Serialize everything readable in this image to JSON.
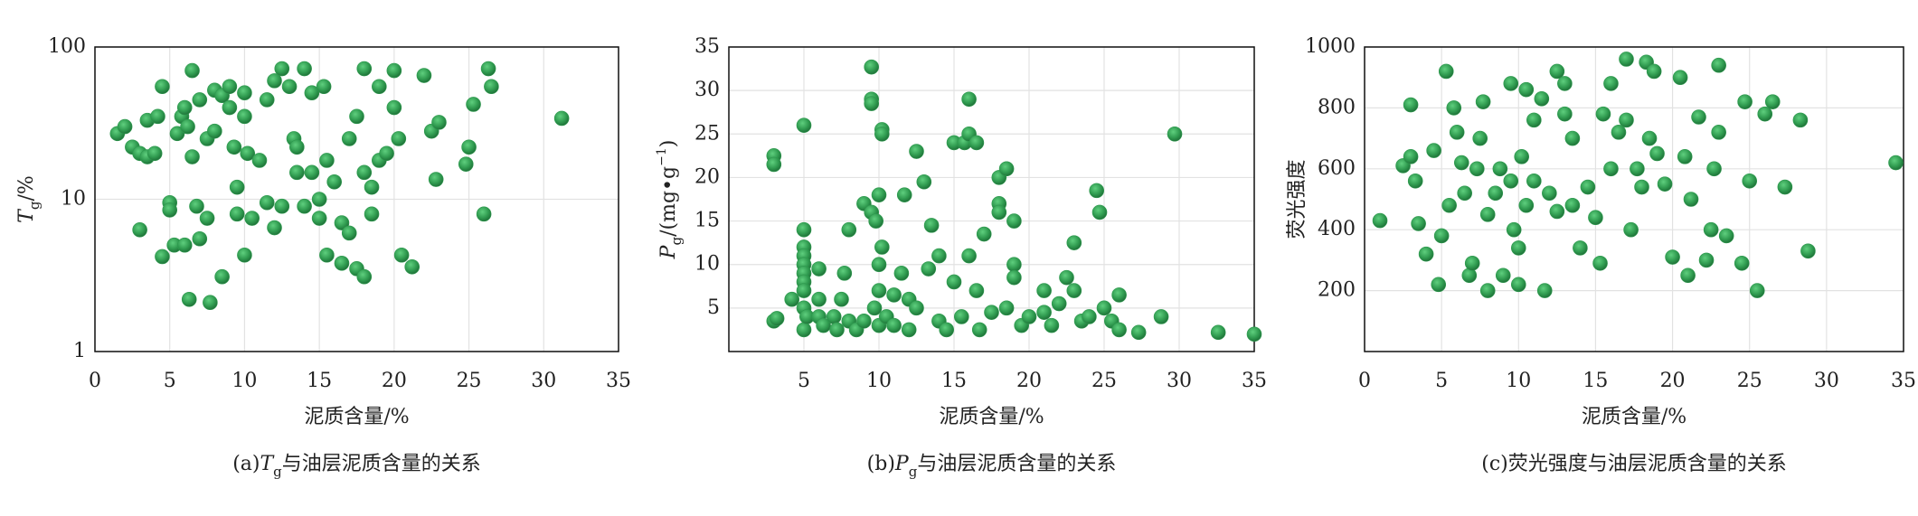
{
  "chart_data": [
    {
      "type": "scatter",
      "color": "#2f9a4f",
      "log_y": true,
      "grid": true,
      "xlabel": [
        {
          "text": "泥质含量/%"
        }
      ],
      "ylabel": [
        {
          "text": "T",
          "style": "italic"
        },
        {
          "text": "g",
          "style": "sub"
        },
        {
          "text": "/%"
        }
      ],
      "caption": [
        {
          "text": "(a)"
        },
        {
          "text": "T",
          "style": "italic"
        },
        {
          "text": "g",
          "style": "sub"
        },
        {
          "text": "与油层泥质含量的关系"
        }
      ],
      "xlim": [
        0,
        35
      ],
      "xticks": [
        0,
        5,
        10,
        15,
        20,
        25,
        30,
        35
      ],
      "ylim": [
        1,
        100
      ],
      "yticks": [
        1,
        10,
        100
      ],
      "x": [
        1.5,
        2,
        2.5,
        3,
        3,
        3.5,
        3.5,
        4,
        4.2,
        4.5,
        4.5,
        5,
        5,
        5.3,
        5.5,
        5.8,
        6,
        6,
        6.2,
        6.3,
        6.5,
        6.5,
        6.8,
        7,
        7,
        7.5,
        7.5,
        7.7,
        8,
        8,
        8.5,
        8.5,
        9,
        9,
        9.3,
        9.5,
        9.5,
        10,
        10,
        10,
        10.2,
        10.5,
        11,
        11.5,
        11.5,
        12,
        12,
        12.5,
        12.5,
        13,
        13.3,
        13.5,
        13.5,
        14,
        14,
        14.5,
        14.5,
        15,
        15,
        15.3,
        15.5,
        15.5,
        16,
        16.5,
        16.5,
        17,
        17,
        17.5,
        17.5,
        18,
        18,
        18,
        18.5,
        18.5,
        19,
        19,
        19.5,
        20,
        20,
        20.3,
        20.5,
        21.2,
        22,
        22.5,
        22.8,
        23,
        24.8,
        25,
        25.3,
        26,
        26.3,
        26.5,
        31.2
      ],
      "values": [
        27,
        30,
        22,
        20,
        6.3,
        33,
        19,
        20,
        35,
        55,
        4.2,
        9.5,
        8.5,
        5,
        27,
        35,
        5,
        40,
        30,
        2.2,
        19,
        70,
        9,
        5.5,
        45,
        25,
        7.5,
        2.1,
        28,
        52,
        48,
        3.1,
        55,
        40,
        22,
        12,
        8,
        35,
        4.3,
        50,
        20,
        7.5,
        18,
        45,
        9.5,
        60,
        6.5,
        72,
        9,
        55,
        25,
        15,
        22,
        72,
        9,
        15,
        50,
        10,
        7.5,
        55,
        18,
        4.3,
        13,
        7,
        3.8,
        25,
        6,
        35,
        3.5,
        72,
        15,
        3.1,
        8,
        12,
        55,
        18,
        20,
        70,
        40,
        25,
        4.3,
        3.6,
        65,
        28,
        13.5,
        32,
        17,
        22,
        42,
        8,
        72,
        55,
        34
      ]
    },
    {
      "type": "scatter",
      "color": "#2f9a4f",
      "log_y": false,
      "grid": true,
      "xlabel": [
        {
          "text": "泥质含量/%"
        }
      ],
      "ylabel": [
        {
          "text": "P",
          "style": "italic"
        },
        {
          "text": "g",
          "style": "sub"
        },
        {
          "text": "/(mg•g"
        },
        {
          "text": "−1",
          "style": "sup"
        },
        {
          "text": ")"
        }
      ],
      "caption": [
        {
          "text": "(b)"
        },
        {
          "text": "P",
          "style": "italic"
        },
        {
          "text": "g",
          "style": "sub"
        },
        {
          "text": "与油层泥质含量的关系"
        }
      ],
      "xlim": [
        0,
        35
      ],
      "xticks": [
        5,
        10,
        15,
        20,
        25,
        30,
        35
      ],
      "ylim": [
        0,
        35
      ],
      "yticks": [
        5,
        10,
        15,
        20,
        25,
        30,
        35
      ],
      "x": [
        3,
        3,
        3,
        3.2,
        4.2,
        5,
        5,
        5,
        5,
        5,
        5,
        5,
        5,
        5,
        5,
        5.2,
        6,
        6,
        6,
        6.3,
        7,
        7.2,
        7.5,
        7.7,
        8,
        8,
        8.5,
        9,
        9,
        9.5,
        9.5,
        9.5,
        9.5,
        9.7,
        9.8,
        10,
        10,
        10,
        10,
        10.2,
        10.2,
        10.2,
        10.5,
        11,
        11,
        11.5,
        11.7,
        12,
        12,
        12.5,
        12.5,
        13,
        13.3,
        13.5,
        14,
        14,
        14.5,
        15,
        15,
        15.5,
        15.7,
        16,
        16,
        16,
        16.5,
        16.5,
        16.7,
        17,
        17.5,
        18,
        18,
        18,
        18.5,
        18.5,
        19,
        19,
        19,
        19.5,
        20,
        21,
        21,
        21.5,
        22,
        22.5,
        23,
        23,
        23.5,
        24,
        24.5,
        24.7,
        25,
        25.5,
        26,
        26,
        27.3,
        28.8,
        29.7,
        32.6,
        35
      ],
      "values": [
        22.5,
        21.5,
        3.5,
        3.8,
        6,
        26,
        14,
        12,
        11,
        10,
        9,
        8,
        7,
        5,
        2.5,
        4,
        9.5,
        6,
        4,
        3,
        4,
        2.5,
        6,
        9,
        14,
        3.5,
        2.5,
        3.5,
        17,
        32.7,
        29,
        28.5,
        16,
        5,
        15,
        18,
        10,
        7,
        3,
        25.5,
        25,
        12,
        4,
        6.5,
        3,
        9,
        18,
        6,
        2.5,
        23,
        5,
        19.5,
        9.5,
        14.5,
        3.5,
        11,
        2.5,
        24,
        8,
        4,
        24,
        29,
        25,
        11,
        24,
        7,
        2.5,
        13.5,
        4.5,
        20,
        17,
        16,
        21,
        5,
        15,
        10,
        8.5,
        3,
        4,
        7,
        4.5,
        3,
        5.5,
        8.5,
        7,
        12.5,
        3.5,
        4,
        18.5,
        16,
        5,
        3.5,
        6.5,
        2.5,
        2.2,
        4,
        25,
        2.2,
        2
      ]
    },
    {
      "type": "scatter",
      "color": "#2f9a4f",
      "log_y": false,
      "grid": true,
      "xlabel": [
        {
          "text": "泥质含量/%"
        }
      ],
      "ylabel": [
        {
          "text": "荧光强度"
        }
      ],
      "caption": [
        {
          "text": "(c)荧光强度与油层泥质含量的关系"
        }
      ],
      "xlim": [
        0,
        35
      ],
      "xticks": [
        0,
        5,
        10,
        15,
        20,
        25,
        30,
        35
      ],
      "ylim": [
        0,
        1000
      ],
      "yticks": [
        200,
        400,
        600,
        800,
        1000
      ],
      "x": [
        1,
        2.5,
        3,
        3,
        3.3,
        3.5,
        4,
        4.5,
        4.8,
        5,
        5.3,
        5.5,
        5.8,
        6,
        6.3,
        6.5,
        6.8,
        7,
        7.3,
        7.5,
        7.7,
        8,
        8,
        8.5,
        8.8,
        9,
        9.5,
        9.5,
        9.7,
        10,
        10,
        10.2,
        10.5,
        10.5,
        11,
        11,
        11.5,
        11.7,
        12,
        12.5,
        12.5,
        13,
        13,
        13.5,
        13.5,
        14,
        14.5,
        15,
        15.3,
        15.5,
        16,
        16,
        16.5,
        17,
        17,
        17.3,
        17.7,
        18,
        18.3,
        18.5,
        18.8,
        19,
        19.5,
        20,
        20.5,
        20.8,
        21,
        21.2,
        21.7,
        22.2,
        22.5,
        22.7,
        23,
        23,
        23.5,
        24.5,
        24.7,
        25,
        25.5,
        26,
        26.5,
        27.3,
        28.3,
        28.8,
        34.5
      ],
      "values": [
        430,
        610,
        640,
        810,
        560,
        420,
        320,
        660,
        220,
        380,
        920,
        480,
        800,
        720,
        620,
        520,
        250,
        290,
        600,
        700,
        820,
        200,
        450,
        520,
        600,
        250,
        880,
        560,
        400,
        220,
        340,
        640,
        860,
        480,
        760,
        560,
        830,
        200,
        520,
        920,
        460,
        780,
        880,
        700,
        480,
        340,
        540,
        440,
        290,
        780,
        880,
        600,
        720,
        960,
        760,
        400,
        600,
        540,
        950,
        700,
        920,
        650,
        550,
        310,
        900,
        640,
        250,
        500,
        770,
        300,
        400,
        600,
        940,
        720,
        380,
        290,
        820,
        560,
        200,
        780,
        820,
        540,
        760,
        330,
        620
      ]
    }
  ]
}
